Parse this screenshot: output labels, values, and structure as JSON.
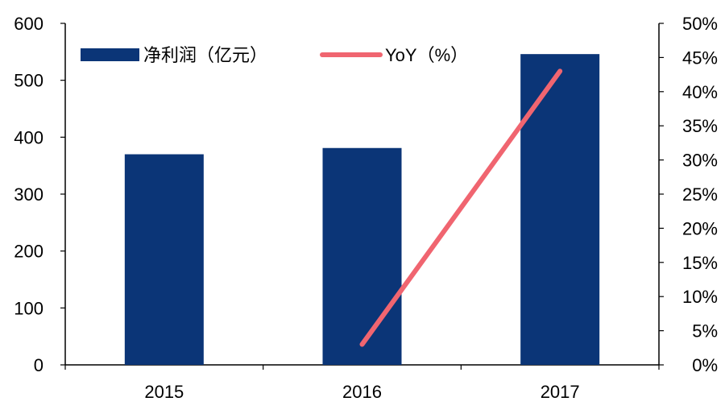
{
  "chart_data": {
    "type": "bar+line",
    "categories": [
      "2015",
      "2016",
      "2017"
    ],
    "series": [
      {
        "name": "净利润（亿元）",
        "type": "bar",
        "axis": "left",
        "values": [
          370,
          381,
          546
        ]
      },
      {
        "name": "YoY（%）",
        "type": "line",
        "axis": "right",
        "values": [
          null,
          3,
          43
        ]
      }
    ],
    "y_left": {
      "min": 0,
      "max": 600,
      "step": 100,
      "ticks": [
        "0",
        "100",
        "200",
        "300",
        "400",
        "500",
        "600"
      ]
    },
    "y_right": {
      "min": 0,
      "max": 50,
      "step": 5,
      "ticks": [
        "0%",
        "5%",
        "10%",
        "15%",
        "20%",
        "25%",
        "30%",
        "35%",
        "40%",
        "45%",
        "50%"
      ]
    },
    "legend_position": "top-left",
    "grid": false,
    "colors": {
      "bar": "#0b3577",
      "line": "#f06570",
      "axis": "#000000"
    }
  }
}
